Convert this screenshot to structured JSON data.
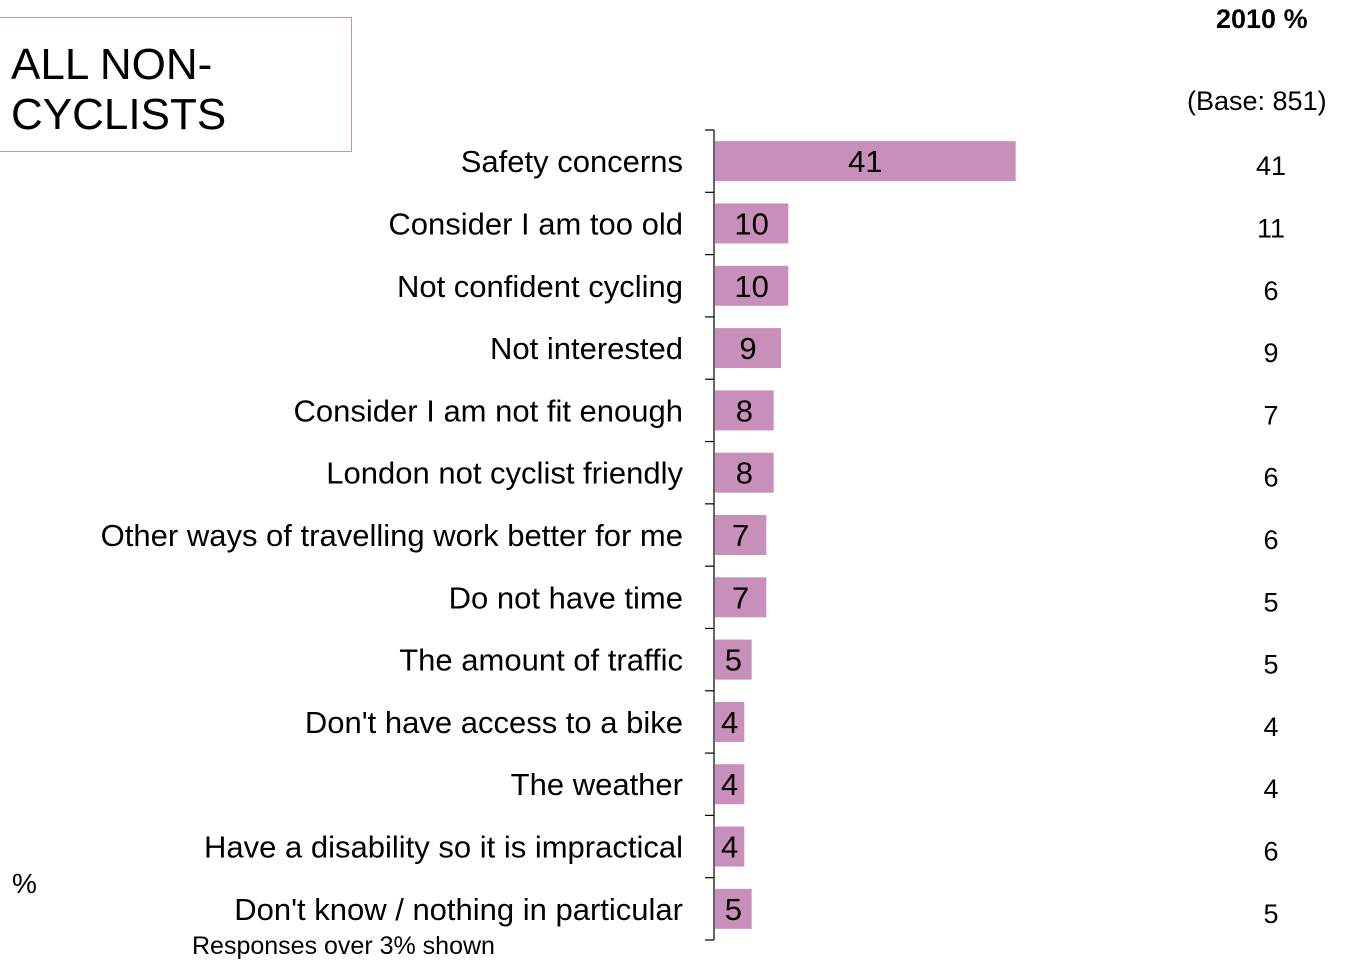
{
  "title_box": {
    "text": "ALL NON-\nCYCLISTS"
  },
  "header": {
    "year_label": "2010 %",
    "base_label": "(Base: 851)"
  },
  "footer": {
    "unit_label": "%",
    "note": "Responses over 3% shown"
  },
  "colors": {
    "bar": "#c88fba",
    "border": "#c88fba",
    "axis": "#000000"
  },
  "chart_data": {
    "type": "bar",
    "orientation": "horizontal",
    "categories": [
      "Safety concerns",
      "Consider I am too old",
      "Not confident cycling",
      "Not interested",
      "Consider I am not fit enough",
      "London not cyclist friendly",
      "Other ways of travelling work better for me",
      "Do not have time",
      "The amount of traffic",
      "Don't have access to a bike",
      "The weather",
      "Have a disability so it is impractical",
      "Don't know / nothing in particular"
    ],
    "values": [
      41,
      10,
      10,
      9,
      8,
      8,
      7,
      7,
      5,
      4,
      4,
      4,
      5
    ],
    "comparison_values": [
      41,
      11,
      6,
      9,
      7,
      6,
      6,
      5,
      5,
      4,
      4,
      6,
      5
    ],
    "data_labels": true,
    "xlim": [
      0,
      60
    ],
    "grid": false
  }
}
